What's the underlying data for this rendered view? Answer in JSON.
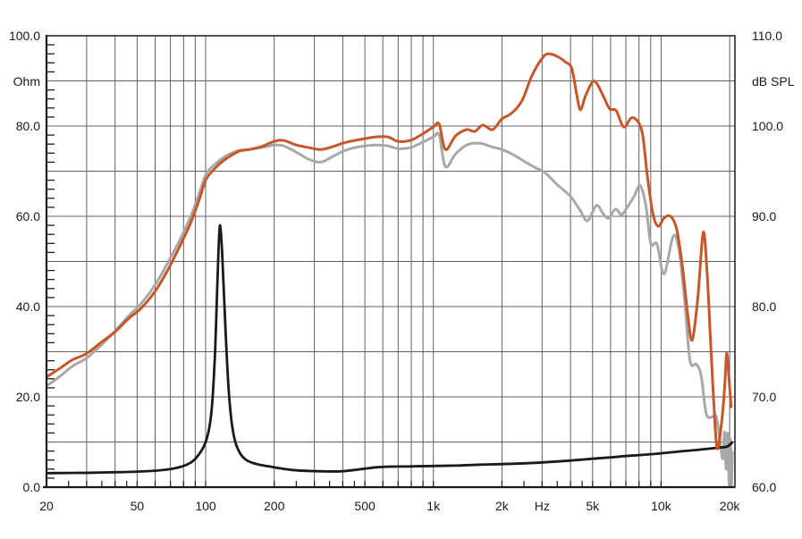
{
  "figure": {
    "background": "#ffffff",
    "text_color": "#1a1a1a"
  },
  "chart_data": {
    "type": "line",
    "title": "",
    "grid": true,
    "legend": "none",
    "x_axis": {
      "label": "Hz",
      "scale": "log",
      "min": 20,
      "max": 20000,
      "ticks": [
        {
          "f": 20,
          "label": "20"
        },
        {
          "f": 50,
          "label": "50"
        },
        {
          "f": 100,
          "label": "100"
        },
        {
          "f": 200,
          "label": "200"
        },
        {
          "f": 500,
          "label": "500"
        },
        {
          "f": 1000,
          "label": "1k"
        },
        {
          "f": 2000,
          "label": "2k"
        },
        {
          "f": 3000,
          "label": "Hz"
        },
        {
          "f": 5000,
          "label": "5k"
        },
        {
          "f": 10000,
          "label": "10k"
        },
        {
          "f": 20000,
          "label": "20k"
        }
      ]
    },
    "y_axis_left": {
      "label": "Ohm",
      "min": 0,
      "max": 100,
      "gridline_step": 10,
      "minor_tick_step": 2,
      "ticks": [
        {
          "value": 100,
          "label": "100.0"
        },
        {
          "value": 80,
          "label": "80.0"
        },
        {
          "value": 60,
          "label": "60.0"
        },
        {
          "value": 40,
          "label": "40.0"
        },
        {
          "value": 20,
          "label": "20.0"
        },
        {
          "value": 0,
          "label": "0.0"
        }
      ]
    },
    "y_axis_right": {
      "label": "dB SPL",
      "min": 60,
      "max": 110,
      "ticks": [
        {
          "value": 110,
          "label": "110.0"
        },
        {
          "value": 100,
          "label": "100.0"
        },
        {
          "value": 90,
          "label": "90.0"
        },
        {
          "value": 80,
          "label": "80.0"
        },
        {
          "value": 70,
          "label": "70.0"
        },
        {
          "value": 60,
          "label": "60.0"
        }
      ]
    },
    "series": [
      {
        "name": "spl-off-axis",
        "unit": "dB SPL",
        "color": "#a8a8a8",
        "width": 3,
        "points": [
          [
            20,
            71.2
          ],
          [
            23,
            72.3
          ],
          [
            26,
            73.4
          ],
          [
            30,
            74.3
          ],
          [
            35,
            75.8
          ],
          [
            40,
            77.3
          ],
          [
            46,
            79.0
          ],
          [
            52,
            80.3
          ],
          [
            60,
            82.4
          ],
          [
            68,
            84.8
          ],
          [
            76,
            87.1
          ],
          [
            85,
            89.7
          ],
          [
            93,
            92.3
          ],
          [
            100,
            94.6
          ],
          [
            107,
            95.5
          ],
          [
            115,
            96.2
          ],
          [
            125,
            96.8
          ],
          [
            140,
            97.3
          ],
          [
            155,
            97.4
          ],
          [
            175,
            97.6
          ],
          [
            200,
            97.9
          ],
          [
            220,
            97.8
          ],
          [
            250,
            97.1
          ],
          [
            285,
            96.3
          ],
          [
            320,
            96.0
          ],
          [
            360,
            96.6
          ],
          [
            400,
            97.2
          ],
          [
            450,
            97.6
          ],
          [
            500,
            97.8
          ],
          [
            560,
            97.9
          ],
          [
            630,
            97.8
          ],
          [
            700,
            97.5
          ],
          [
            790,
            97.6
          ],
          [
            880,
            98.1
          ],
          [
            1000,
            98.8
          ],
          [
            1060,
            99.0
          ],
          [
            1130,
            95.5
          ],
          [
            1250,
            96.9
          ],
          [
            1400,
            97.9
          ],
          [
            1600,
            98.1
          ],
          [
            1800,
            97.7
          ],
          [
            2000,
            97.4
          ],
          [
            2250,
            96.8
          ],
          [
            2500,
            96.1
          ],
          [
            2800,
            95.4
          ],
          [
            3100,
            94.8
          ],
          [
            3500,
            93.5
          ],
          [
            4000,
            92.2
          ],
          [
            4400,
            90.7
          ],
          [
            4750,
            89.5
          ],
          [
            5200,
            91.2
          ],
          [
            5600,
            90.2
          ],
          [
            5900,
            89.8
          ],
          [
            6300,
            90.8
          ],
          [
            6700,
            90.2
          ],
          [
            7100,
            91.0
          ],
          [
            7600,
            92.2
          ],
          [
            8100,
            93.4
          ],
          [
            8600,
            91.0
          ],
          [
            9000,
            87.0
          ],
          [
            9600,
            86.9
          ],
          [
            10300,
            83.6
          ],
          [
            11300,
            87.8
          ],
          [
            12000,
            86.2
          ],
          [
            12700,
            80.5
          ],
          [
            13400,
            74.0
          ],
          [
            14300,
            73.6
          ],
          [
            15000,
            72.3
          ],
          [
            15800,
            68.1
          ],
          [
            16800,
            67.8
          ],
          [
            17400,
            67.9
          ],
          [
            17800,
            66.6
          ],
          [
            18300,
            64.3
          ],
          [
            18700,
            63.2
          ],
          [
            19000,
            66.1
          ],
          [
            19300,
            62.0
          ],
          [
            19600,
            66.0
          ],
          [
            19900,
            60.3
          ],
          [
            20150,
            65.3
          ],
          [
            20350,
            60.2
          ],
          [
            20550,
            63.9
          ]
        ]
      },
      {
        "name": "impedance",
        "unit": "Ohm",
        "color": "#1a1a1a",
        "width": 2.8,
        "points": [
          [
            20,
            3.1
          ],
          [
            25,
            3.15
          ],
          [
            32,
            3.2
          ],
          [
            40,
            3.3
          ],
          [
            50,
            3.45
          ],
          [
            60,
            3.65
          ],
          [
            70,
            4.0
          ],
          [
            80,
            4.7
          ],
          [
            88,
            5.8
          ],
          [
            95,
            7.8
          ],
          [
            100,
            10
          ],
          [
            104,
            13.5
          ],
          [
            107,
            19
          ],
          [
            110,
            30
          ],
          [
            112,
            42
          ],
          [
            114,
            53
          ],
          [
            115.5,
            58
          ],
          [
            117.5,
            54
          ],
          [
            120,
            44
          ],
          [
            123,
            32
          ],
          [
            126,
            22
          ],
          [
            130,
            14.5
          ],
          [
            135,
            10
          ],
          [
            142,
            7.4
          ],
          [
            150,
            6.1
          ],
          [
            160,
            5.4
          ],
          [
            175,
            4.9
          ],
          [
            190,
            4.6
          ],
          [
            210,
            4.2
          ],
          [
            240,
            3.8
          ],
          [
            280,
            3.6
          ],
          [
            330,
            3.5
          ],
          [
            390,
            3.5
          ],
          [
            450,
            3.8
          ],
          [
            500,
            4.1
          ],
          [
            560,
            4.4
          ],
          [
            650,
            4.55
          ],
          [
            800,
            4.6
          ],
          [
            1000,
            4.7
          ],
          [
            1300,
            4.8
          ],
          [
            1600,
            5.0
          ],
          [
            2000,
            5.1
          ],
          [
            2600,
            5.3
          ],
          [
            3300,
            5.6
          ],
          [
            4000,
            5.9
          ],
          [
            5000,
            6.3
          ],
          [
            6000,
            6.6
          ],
          [
            7000,
            6.9
          ],
          [
            8000,
            7.1
          ],
          [
            9000,
            7.3
          ],
          [
            10000,
            7.5
          ],
          [
            12000,
            7.9
          ],
          [
            14000,
            8.2
          ],
          [
            16000,
            8.5
          ],
          [
            18000,
            8.75
          ],
          [
            19500,
            9.0
          ],
          [
            20500,
            9.9
          ]
        ]
      },
      {
        "name": "spl-on-axis",
        "unit": "dB SPL",
        "color": "#c75629",
        "width": 3,
        "points": [
          [
            20,
            72.2
          ],
          [
            23,
            73.2
          ],
          [
            26,
            74.1
          ],
          [
            30,
            74.8
          ],
          [
            35,
            76.1
          ],
          [
            40,
            77.2
          ],
          [
            46,
            78.7
          ],
          [
            52,
            79.8
          ],
          [
            60,
            81.7
          ],
          [
            68,
            84.0
          ],
          [
            76,
            86.4
          ],
          [
            85,
            89.0
          ],
          [
            93,
            91.6
          ],
          [
            100,
            94.0
          ],
          [
            107,
            95.0
          ],
          [
            115,
            95.8
          ],
          [
            125,
            96.5
          ],
          [
            140,
            97.2
          ],
          [
            155,
            97.4
          ],
          [
            175,
            97.7
          ],
          [
            200,
            98.3
          ],
          [
            220,
            98.4
          ],
          [
            250,
            97.9
          ],
          [
            285,
            97.6
          ],
          [
            320,
            97.4
          ],
          [
            360,
            97.7
          ],
          [
            400,
            98.1
          ],
          [
            450,
            98.4
          ],
          [
            500,
            98.6
          ],
          [
            560,
            98.8
          ],
          [
            630,
            98.8
          ],
          [
            700,
            98.3
          ],
          [
            790,
            98.4
          ],
          [
            880,
            99.0
          ],
          [
            1000,
            99.9
          ],
          [
            1060,
            100.2
          ],
          [
            1130,
            97.4
          ],
          [
            1250,
            98.9
          ],
          [
            1400,
            99.6
          ],
          [
            1520,
            99.4
          ],
          [
            1650,
            100.1
          ],
          [
            1820,
            99.6
          ],
          [
            2000,
            100.8
          ],
          [
            2200,
            101.4
          ],
          [
            2450,
            102.8
          ],
          [
            2700,
            105.5
          ],
          [
            3000,
            107.5
          ],
          [
            3200,
            108.0
          ],
          [
            3500,
            107.7
          ],
          [
            3800,
            107.1
          ],
          [
            4050,
            106.4
          ],
          [
            4250,
            103.6
          ],
          [
            4420,
            101.8
          ],
          [
            4650,
            103.3
          ],
          [
            5000,
            104.9
          ],
          [
            5250,
            104.6
          ],
          [
            5600,
            103.2
          ],
          [
            5950,
            101.9
          ],
          [
            6350,
            101.7
          ],
          [
            6850,
            99.9
          ],
          [
            7400,
            100.9
          ],
          [
            7900,
            100.5
          ],
          [
            8300,
            99.0
          ],
          [
            8700,
            94.5
          ],
          [
            9200,
            90.3
          ],
          [
            9700,
            88.9
          ],
          [
            10300,
            89.8
          ],
          [
            11000,
            90.0
          ],
          [
            11700,
            88.6
          ],
          [
            12400,
            84.5
          ],
          [
            13100,
            79.0
          ],
          [
            13700,
            76.3
          ],
          [
            14500,
            81.0
          ],
          [
            15300,
            88.2
          ],
          [
            15900,
            84.0
          ],
          [
            16500,
            76.0
          ],
          [
            17000,
            69.8
          ],
          [
            17600,
            64.3
          ],
          [
            18400,
            67.0
          ],
          [
            19000,
            71.0
          ],
          [
            19400,
            74.8
          ],
          [
            19800,
            72.5
          ],
          [
            20300,
            68.9
          ]
        ]
      }
    ],
    "colors": {
      "grid": "#606060",
      "frame": "#1a1a1a",
      "background": "#ffffff"
    }
  }
}
